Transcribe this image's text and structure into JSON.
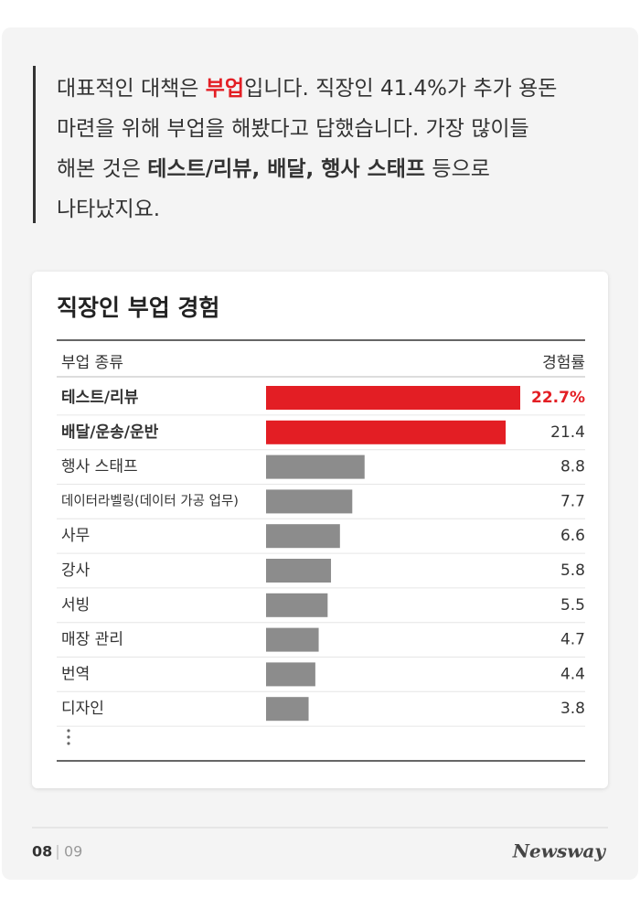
{
  "intro": {
    "lines": [
      [
        {
          "text": "대표적인 대책은 ",
          "style": "normal"
        },
        {
          "text": "부업",
          "style": "red-bold"
        },
        {
          "text": "입니다. 직장인 41.4%가 추가 용돈",
          "style": "normal"
        }
      ],
      [
        {
          "text": "마련을 위해 부업을 해봤다고 답했습니다. 가장 많이들",
          "style": "normal"
        }
      ],
      [
        {
          "text": "해본 것은 ",
          "style": "normal"
        },
        {
          "text": "테스트/리뷰, 배달, 행사 스태프",
          "style": "bold"
        },
        {
          "text": " 등으로",
          "style": "normal"
        }
      ],
      [
        {
          "text": "나타났지요.",
          "style": "normal"
        }
      ]
    ]
  },
  "chart_data": {
    "type": "bar",
    "orientation": "horizontal",
    "title": "직장인 부업 경험",
    "category_header": "부업 종류",
    "value_header": "경험률",
    "categories": [
      "테스트/리뷰",
      "배달/운송/운반",
      "행사 스태프",
      "데이터라벨링(데이터 가공 업무)",
      "사무",
      "강사",
      "서빙",
      "매장 관리",
      "번역",
      "디자인"
    ],
    "values": [
      22.7,
      21.4,
      8.8,
      7.7,
      6.6,
      5.8,
      5.5,
      4.7,
      4.4,
      3.8
    ],
    "value_labels": [
      "22.7%",
      "21.4",
      "8.8",
      "7.7",
      "6.6",
      "5.8",
      "5.5",
      "4.7",
      "4.4",
      "3.8"
    ],
    "colors": [
      "#e31e24",
      "#e31e24",
      "#8c8c8c",
      "#8c8c8c",
      "#8c8c8c",
      "#8c8c8c",
      "#8c8c8c",
      "#8c8c8c",
      "#8c8c8c",
      "#8c8c8c"
    ],
    "highlight_color": "#e31e24",
    "value_label_colors": [
      "#e31e24",
      "#333333",
      "#333333",
      "#333333",
      "#333333",
      "#333333",
      "#333333",
      "#333333",
      "#333333",
      "#333333"
    ]
  },
  "footer": {
    "page": "08",
    "total": "09",
    "brand": "Newsway"
  }
}
